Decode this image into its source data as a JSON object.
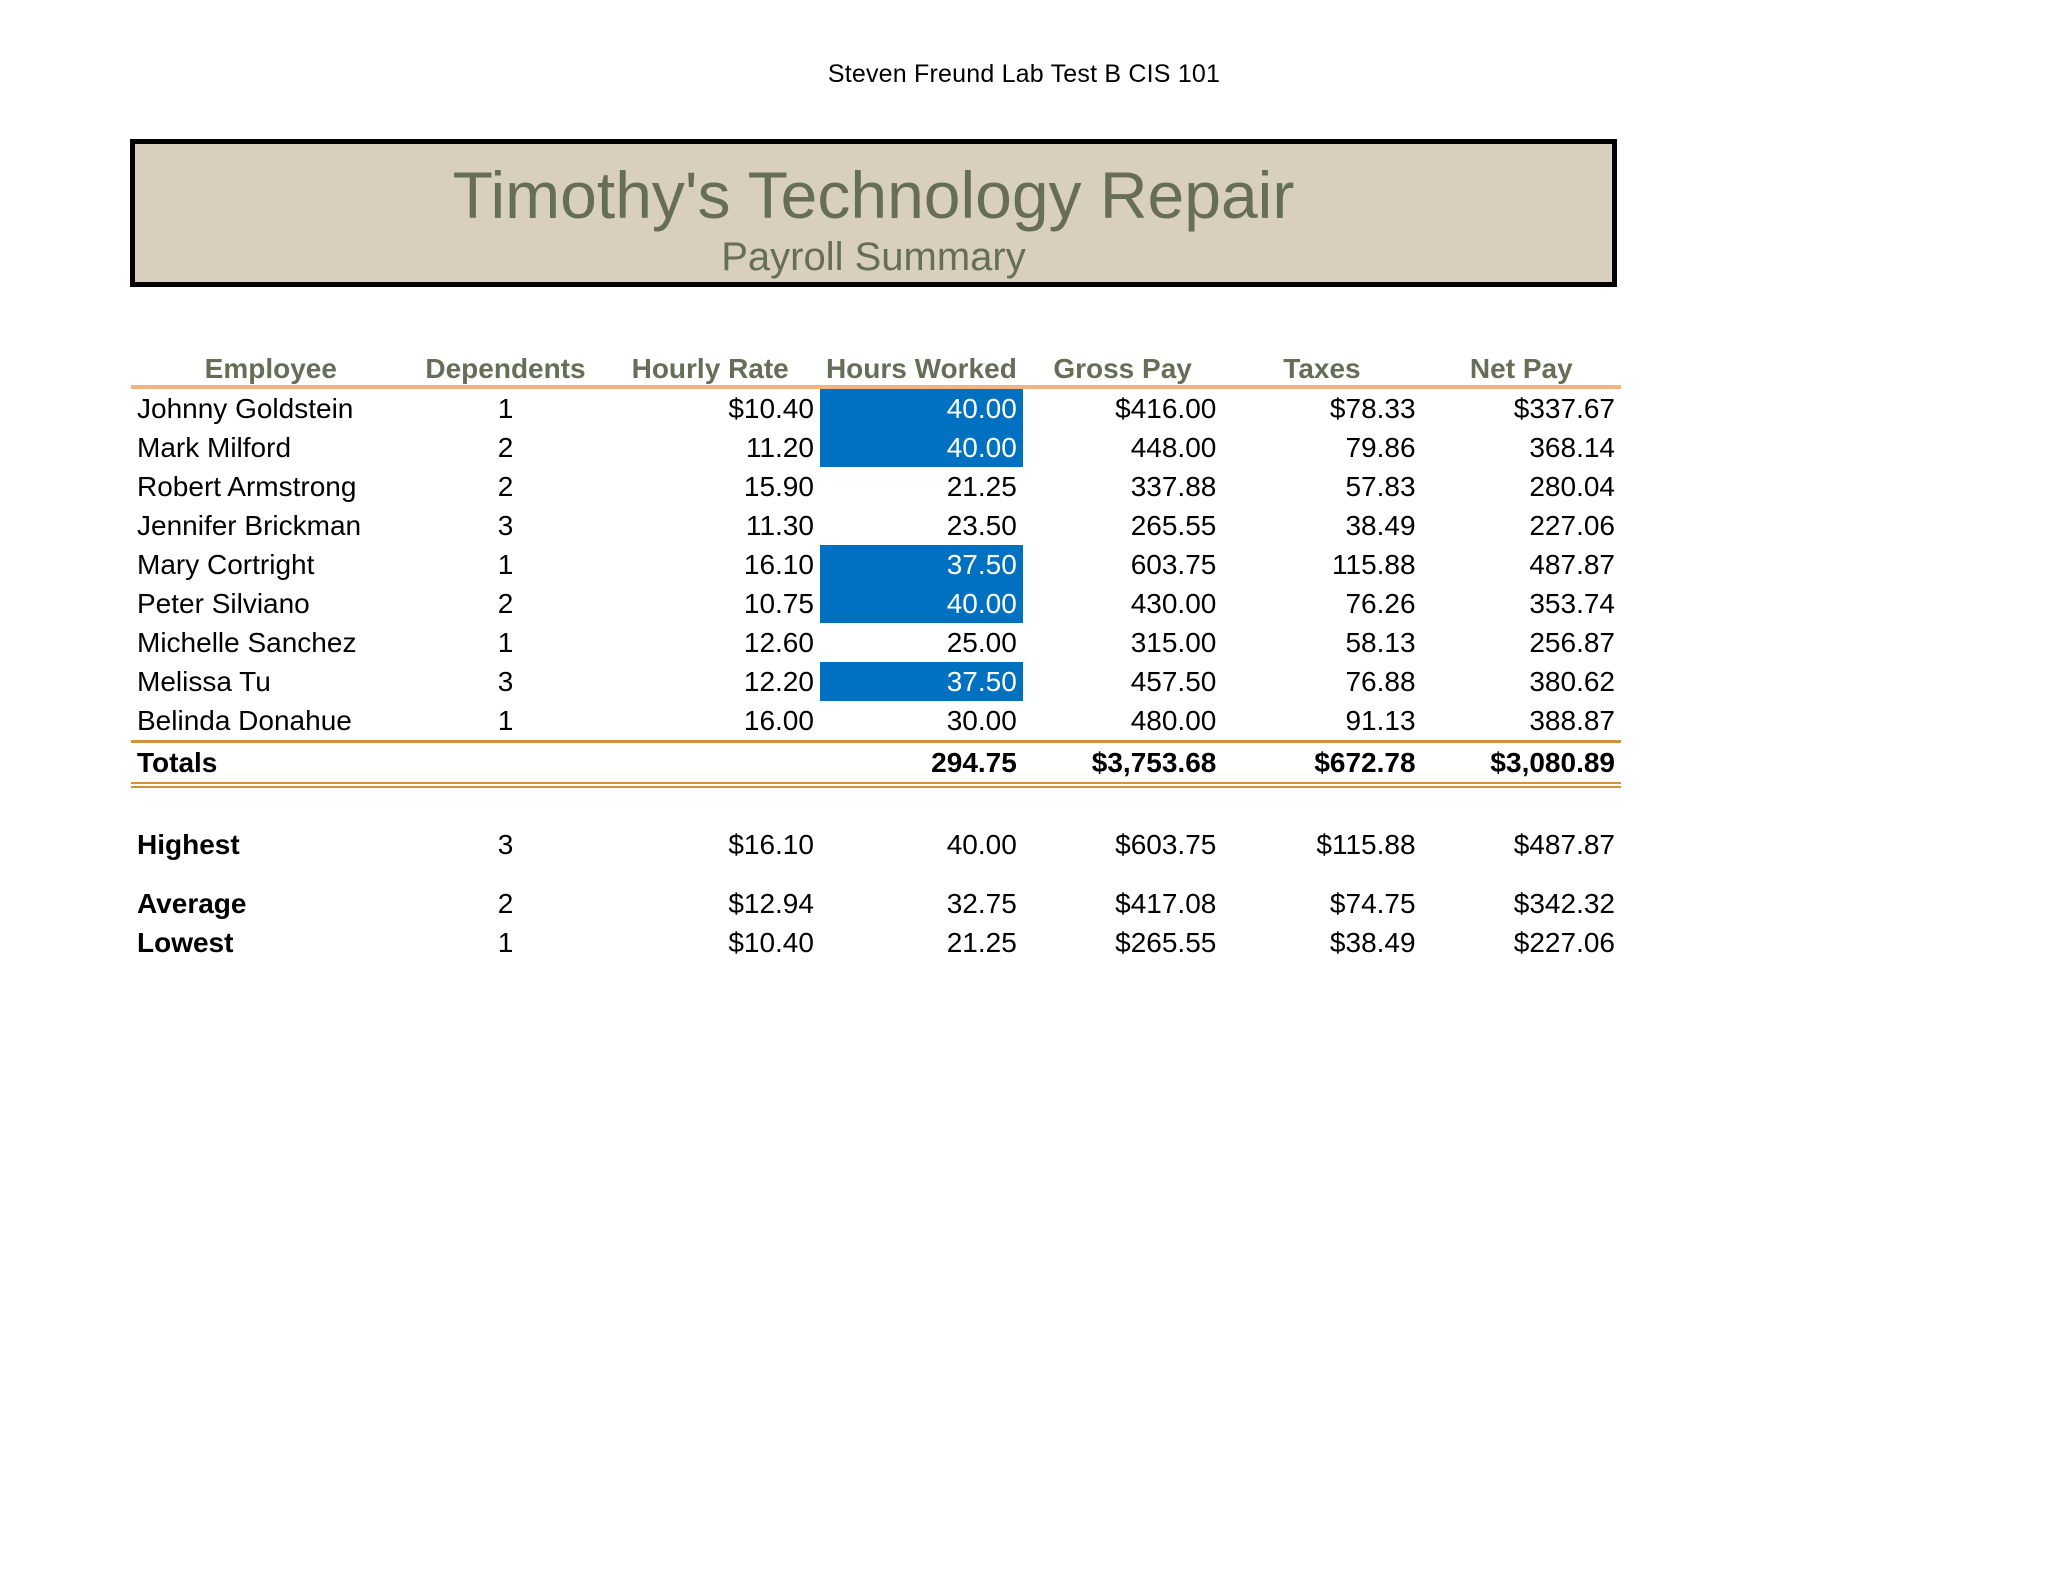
{
  "page_header": "Steven Freund Lab Test B CIS 101",
  "banner": {
    "title": "Timothy's Technology Repair",
    "subtitle": "Payroll Summary"
  },
  "columns": [
    "Employee",
    "Dependents",
    "Hourly Rate",
    "Hours Worked",
    "Gross Pay",
    "Taxes",
    "Net Pay"
  ],
  "highlight_color": "#0070c0",
  "rows": [
    {
      "name": "Johnny Goldstein",
      "dependents": "1",
      "rate": "$10.40",
      "hours": "40.00",
      "gross": "$416.00",
      "taxes": "$78.33",
      "net": "$337.67",
      "hours_highlight": true
    },
    {
      "name": "Mark Milford",
      "dependents": "2",
      "rate": "11.20",
      "hours": "40.00",
      "gross": "448.00",
      "taxes": "79.86",
      "net": "368.14",
      "hours_highlight": true
    },
    {
      "name": "Robert Armstrong",
      "dependents": "2",
      "rate": "15.90",
      "hours": "21.25",
      "gross": "337.88",
      "taxes": "57.83",
      "net": "280.04",
      "hours_highlight": false
    },
    {
      "name": "Jennifer Brickman",
      "dependents": "3",
      "rate": "11.30",
      "hours": "23.50",
      "gross": "265.55",
      "taxes": "38.49",
      "net": "227.06",
      "hours_highlight": false
    },
    {
      "name": "Mary Cortright",
      "dependents": "1",
      "rate": "16.10",
      "hours": "37.50",
      "gross": "603.75",
      "taxes": "115.88",
      "net": "487.87",
      "hours_highlight": true
    },
    {
      "name": "Peter Silviano",
      "dependents": "2",
      "rate": "10.75",
      "hours": "40.00",
      "gross": "430.00",
      "taxes": "76.26",
      "net": "353.74",
      "hours_highlight": true
    },
    {
      "name": "Michelle Sanchez",
      "dependents": "1",
      "rate": "12.60",
      "hours": "25.00",
      "gross": "315.00",
      "taxes": "58.13",
      "net": "256.87",
      "hours_highlight": false
    },
    {
      "name": "Melissa Tu",
      "dependents": "3",
      "rate": "12.20",
      "hours": "37.50",
      "gross": "457.50",
      "taxes": "76.88",
      "net": "380.62",
      "hours_highlight": true
    },
    {
      "name": "Belinda Donahue",
      "dependents": "1",
      "rate": "16.00",
      "hours": "30.00",
      "gross": "480.00",
      "taxes": "91.13",
      "net": "388.87",
      "hours_highlight": false
    }
  ],
  "totals": {
    "label": "Totals",
    "hours": "294.75",
    "gross": "$3,753.68",
    "taxes": "$672.78",
    "net": "$3,080.89"
  },
  "stats": {
    "highest": {
      "label": "Highest",
      "dependents": "3",
      "rate": "$16.10",
      "hours": "40.00",
      "gross": "$603.75",
      "taxes": "$115.88",
      "net": "$487.87"
    },
    "average": {
      "label": "Average",
      "dependents": "2",
      "rate": "$12.94",
      "hours": "32.75",
      "gross": "$417.08",
      "taxes": "$74.75",
      "net": "$342.32"
    },
    "lowest": {
      "label": "Lowest",
      "dependents": "1",
      "rate": "$10.40",
      "hours": "21.25",
      "gross": "$265.55",
      "taxes": "$38.49",
      "net": "$227.06"
    }
  }
}
